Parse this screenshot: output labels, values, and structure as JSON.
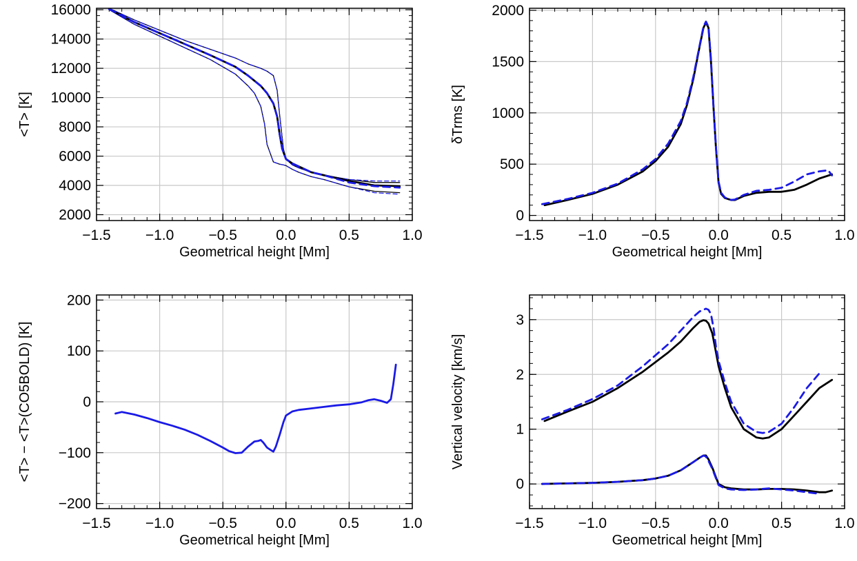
{
  "colors": {
    "black": "#000000",
    "blue": "#1a1ae6",
    "grid": "#c8c8c8"
  },
  "chart_data": [
    {
      "type": "line",
      "xlabel": "Geometrical height [Mm]",
      "ylabel": "<T> [K]",
      "xlim": [
        -1.5,
        1.0
      ],
      "ylim": [
        1600,
        16100
      ],
      "xticks": [
        "−1.5",
        "−1.0",
        "−0.5",
        "0.0",
        "0.5",
        "1.0"
      ],
      "xtick_values": [
        -1.5,
        -1.0,
        -0.5,
        0.0,
        0.5,
        1.0
      ],
      "yticks": [
        "2000",
        "4000",
        "6000",
        "8000",
        "10000",
        "12000",
        "14000",
        "16000"
      ],
      "ytick_values": [
        2000,
        4000,
        6000,
        8000,
        10000,
        12000,
        14000,
        16000
      ],
      "grid": true,
      "series": [
        {
          "style": "black-thin",
          "x": [
            -1.4,
            -1.2,
            -1.0,
            -0.8,
            -0.6,
            -0.4,
            -0.3,
            -0.2,
            -0.15,
            -0.1,
            -0.07,
            -0.05,
            -0.02,
            0.0,
            0.05,
            0.1,
            0.2,
            0.3,
            0.5,
            0.7,
            0.9
          ],
          "y": [
            16100,
            15300,
            14600,
            13900,
            13300,
            12700,
            12300,
            12000,
            11800,
            11500,
            10500,
            8800,
            6500,
            5800,
            5400,
            5200,
            4900,
            4700,
            4400,
            4200,
            4200
          ]
        },
        {
          "style": "blue-thin-dashed",
          "x": [
            -1.4,
            -1.2,
            -1.0,
            -0.8,
            -0.6,
            -0.4,
            -0.3,
            -0.2,
            -0.15,
            -0.1,
            -0.07,
            -0.05,
            -0.02,
            0.0,
            0.05,
            0.1,
            0.2,
            0.3,
            0.5,
            0.7,
            0.9
          ],
          "y": [
            16100,
            15300,
            14600,
            13900,
            13300,
            12700,
            12300,
            12000,
            11800,
            11500,
            10500,
            8800,
            6500,
            5800,
            5400,
            5200,
            4900,
            4700,
            4400,
            4300,
            4300
          ]
        },
        {
          "style": "black-thin",
          "x": [
            -1.4,
            -1.2,
            -1.0,
            -0.8,
            -0.6,
            -0.4,
            -0.3,
            -0.25,
            -0.2,
            -0.17,
            -0.15,
            -0.1,
            -0.05,
            -0.02,
            0.0,
            0.05,
            0.1,
            0.2,
            0.3,
            0.5,
            0.7,
            0.9
          ],
          "y": [
            16000,
            15000,
            14200,
            13400,
            12600,
            11600,
            10800,
            10300,
            9400,
            8200,
            6800,
            5600,
            5450,
            5400,
            5350,
            5100,
            4900,
            4600,
            4400,
            3900,
            3600,
            3500
          ]
        },
        {
          "style": "blue-thin-dashed",
          "x": [
            -1.4,
            -1.2,
            -1.0,
            -0.8,
            -0.6,
            -0.4,
            -0.3,
            -0.25,
            -0.2,
            -0.17,
            -0.15,
            -0.1,
            -0.05,
            -0.02,
            0.0,
            0.05,
            0.1,
            0.2,
            0.3,
            0.5,
            0.7,
            0.9
          ],
          "y": [
            16000,
            15000,
            14200,
            13400,
            12600,
            11600,
            10800,
            10300,
            9400,
            8200,
            6800,
            5600,
            5450,
            5400,
            5350,
            5100,
            4900,
            4600,
            4400,
            3900,
            3500,
            3400
          ]
        },
        {
          "style": "black-thick",
          "x": [
            -1.4,
            -1.2,
            -1.0,
            -0.8,
            -0.6,
            -0.4,
            -0.3,
            -0.2,
            -0.15,
            -0.1,
            -0.07,
            -0.05,
            -0.03,
            0.0,
            0.05,
            0.1,
            0.2,
            0.3,
            0.5,
            0.7,
            0.9
          ],
          "y": [
            16050,
            15150,
            14400,
            13650,
            12900,
            12100,
            11500,
            10800,
            10300,
            9600,
            8700,
            7500,
            6500,
            5800,
            5500,
            5300,
            4900,
            4700,
            4300,
            4000,
            3950
          ]
        },
        {
          "style": "blue-thick-dashed",
          "x": [
            -1.4,
            -1.2,
            -1.0,
            -0.8,
            -0.6,
            -0.4,
            -0.3,
            -0.2,
            -0.15,
            -0.1,
            -0.07,
            -0.05,
            -0.03,
            0.0,
            0.05,
            0.1,
            0.2,
            0.3,
            0.5,
            0.7,
            0.9
          ],
          "y": [
            16050,
            15150,
            14400,
            13650,
            12900,
            12100,
            11500,
            10800,
            10300,
            9600,
            8700,
            7500,
            6500,
            5800,
            5500,
            5300,
            4900,
            4700,
            4200,
            3950,
            3850
          ]
        }
      ]
    },
    {
      "type": "line",
      "xlabel": "Geometrical height [Mm]",
      "ylabel": "δTrms [K]",
      "xlim": [
        -1.5,
        1.0
      ],
      "ylim": [
        -50,
        2020
      ],
      "xticks": [
        "−1.5",
        "−1.0",
        "−0.5",
        "0.0",
        "0.5",
        "1.0"
      ],
      "xtick_values": [
        -1.5,
        -1.0,
        -0.5,
        0.0,
        0.5,
        1.0
      ],
      "yticks": [
        "0",
        "500",
        "1000",
        "1500",
        "2000"
      ],
      "ytick_values": [
        0,
        500,
        1000,
        1500,
        2000
      ],
      "grid": true,
      "series": [
        {
          "style": "black-thick",
          "x": [
            -1.38,
            -1.2,
            -1.0,
            -0.8,
            -0.6,
            -0.5,
            -0.4,
            -0.3,
            -0.25,
            -0.2,
            -0.15,
            -0.12,
            -0.1,
            -0.08,
            -0.06,
            -0.04,
            -0.02,
            0.0,
            0.02,
            0.05,
            0.1,
            0.13,
            0.2,
            0.3,
            0.4,
            0.5,
            0.6,
            0.7,
            0.8,
            0.9
          ],
          "y": [
            100,
            150,
            210,
            300,
            430,
            530,
            670,
            890,
            1080,
            1330,
            1650,
            1830,
            1880,
            1830,
            1500,
            1050,
            650,
            320,
            210,
            170,
            150,
            150,
            190,
            220,
            230,
            230,
            250,
            300,
            360,
            400
          ]
        },
        {
          "style": "blue-thick-dashed",
          "x": [
            -1.4,
            -1.2,
            -1.0,
            -0.8,
            -0.6,
            -0.5,
            -0.4,
            -0.3,
            -0.25,
            -0.2,
            -0.15,
            -0.12,
            -0.1,
            -0.08,
            -0.06,
            -0.04,
            -0.02,
            0.0,
            0.02,
            0.05,
            0.1,
            0.13,
            0.2,
            0.3,
            0.4,
            0.5,
            0.6,
            0.7,
            0.8,
            0.87,
            0.9
          ],
          "y": [
            110,
            160,
            220,
            310,
            450,
            550,
            700,
            920,
            1100,
            1350,
            1660,
            1840,
            1890,
            1840,
            1520,
            1060,
            660,
            330,
            220,
            175,
            150,
            155,
            200,
            240,
            250,
            270,
            330,
            400,
            430,
            440,
            390
          ]
        }
      ]
    },
    {
      "type": "line",
      "xlabel": "Geometrical height [Mm]",
      "ylabel": "<T> − <T>(CO5BOLD) [K]",
      "xlim": [
        -1.5,
        1.0
      ],
      "ylim": [
        -210,
        210
      ],
      "xticks": [
        "−1.5",
        "−1.0",
        "−0.5",
        "0.0",
        "0.5",
        "1.0"
      ],
      "xtick_values": [
        -1.5,
        -1.0,
        -0.5,
        0.0,
        0.5,
        1.0
      ],
      "yticks": [
        "−200",
        "−100",
        "0",
        "100",
        "200"
      ],
      "ytick_values": [
        -200,
        -100,
        0,
        100,
        200
      ],
      "grid": true,
      "series": [
        {
          "style": "blue-thick",
          "x": [
            -1.35,
            -1.3,
            -1.2,
            -1.1,
            -1.0,
            -0.9,
            -0.8,
            -0.7,
            -0.6,
            -0.5,
            -0.45,
            -0.4,
            -0.35,
            -0.3,
            -0.25,
            -0.22,
            -0.2,
            -0.18,
            -0.15,
            -0.12,
            -0.1,
            -0.08,
            -0.05,
            -0.02,
            0.0,
            0.05,
            0.1,
            0.2,
            0.3,
            0.4,
            0.5,
            0.6,
            0.65,
            0.7,
            0.75,
            0.8,
            0.83,
            0.85,
            0.87
          ],
          "y": [
            -23,
            -20,
            -25,
            -32,
            -40,
            -47,
            -55,
            -65,
            -77,
            -90,
            -97,
            -101,
            -100,
            -88,
            -78,
            -77,
            -75,
            -80,
            -90,
            -95,
            -98,
            -88,
            -65,
            -40,
            -27,
            -19,
            -16,
            -13,
            -10,
            -7,
            -5,
            -1,
            3,
            5,
            2,
            -2,
            5,
            35,
            73
          ]
        }
      ]
    },
    {
      "type": "line",
      "xlabel": "Geometrical height [Mm]",
      "ylabel": "Vertical velocity [km/s]",
      "xlim": [
        -1.5,
        1.0
      ],
      "ylim": [
        -0.45,
        3.45
      ],
      "xticks": [
        "−1.5",
        "−1.0",
        "−0.5",
        "0.0",
        "0.5",
        "1.0"
      ],
      "xtick_values": [
        -1.5,
        -1.0,
        -0.5,
        0.0,
        0.5,
        1.0
      ],
      "yticks": [
        "0",
        "1",
        "2",
        "3"
      ],
      "ytick_values": [
        0,
        1,
        2,
        3
      ],
      "grid": true,
      "series": [
        {
          "style": "black-thick",
          "x": [
            -1.38,
            -1.2,
            -1.0,
            -0.8,
            -0.6,
            -0.4,
            -0.3,
            -0.2,
            -0.15,
            -0.12,
            -0.1,
            -0.08,
            -0.05,
            -0.02,
            0.0,
            0.05,
            0.1,
            0.2,
            0.3,
            0.35,
            0.4,
            0.5,
            0.6,
            0.7,
            0.8,
            0.9
          ],
          "y": [
            1.15,
            1.32,
            1.5,
            1.75,
            2.05,
            2.4,
            2.6,
            2.85,
            2.96,
            2.99,
            2.98,
            2.93,
            2.75,
            2.4,
            2.15,
            1.75,
            1.4,
            1.0,
            0.85,
            0.83,
            0.85,
            1.0,
            1.25,
            1.5,
            1.75,
            1.9
          ]
        },
        {
          "style": "blue-thick-dashed",
          "x": [
            -1.4,
            -1.2,
            -1.0,
            -0.8,
            -0.6,
            -0.4,
            -0.3,
            -0.2,
            -0.15,
            -0.12,
            -0.1,
            -0.08,
            -0.06,
            -0.04,
            -0.02,
            0.0,
            0.05,
            0.1,
            0.2,
            0.3,
            0.35,
            0.4,
            0.5,
            0.6,
            0.7,
            0.8
          ],
          "y": [
            1.18,
            1.35,
            1.55,
            1.8,
            2.15,
            2.55,
            2.8,
            3.05,
            3.15,
            3.18,
            3.2,
            3.18,
            3.1,
            2.85,
            2.5,
            2.25,
            1.85,
            1.5,
            1.1,
            0.95,
            0.93,
            0.95,
            1.1,
            1.4,
            1.75,
            2.02
          ]
        },
        {
          "style": "black-thick",
          "x": [
            -1.4,
            -1.2,
            -1.0,
            -0.8,
            -0.6,
            -0.5,
            -0.4,
            -0.3,
            -0.2,
            -0.15,
            -0.12,
            -0.1,
            -0.08,
            -0.05,
            -0.02,
            0.0,
            0.05,
            0.1,
            0.2,
            0.3,
            0.4,
            0.5,
            0.6,
            0.7,
            0.8,
            0.85,
            0.9
          ],
          "y": [
            0.0,
            0.01,
            0.02,
            0.04,
            0.07,
            0.1,
            0.15,
            0.25,
            0.4,
            0.48,
            0.52,
            0.52,
            0.45,
            0.3,
            0.12,
            0.0,
            -0.06,
            -0.08,
            -0.1,
            -0.1,
            -0.09,
            -0.09,
            -0.1,
            -0.12,
            -0.15,
            -0.15,
            -0.12
          ]
        },
        {
          "style": "blue-thick-dashed",
          "x": [
            -1.4,
            -1.2,
            -1.0,
            -0.8,
            -0.6,
            -0.5,
            -0.4,
            -0.3,
            -0.2,
            -0.15,
            -0.12,
            -0.1,
            -0.08,
            -0.05,
            -0.02,
            0.0,
            0.05,
            0.1,
            0.2,
            0.3,
            0.4,
            0.5,
            0.6,
            0.7,
            0.8
          ],
          "y": [
            0.0,
            0.01,
            0.02,
            0.04,
            0.07,
            0.1,
            0.15,
            0.25,
            0.4,
            0.48,
            0.52,
            0.5,
            0.42,
            0.28,
            0.1,
            -0.02,
            -0.08,
            -0.1,
            -0.11,
            -0.1,
            -0.08,
            -0.1,
            -0.12,
            -0.15,
            -0.18
          ]
        }
      ]
    }
  ]
}
